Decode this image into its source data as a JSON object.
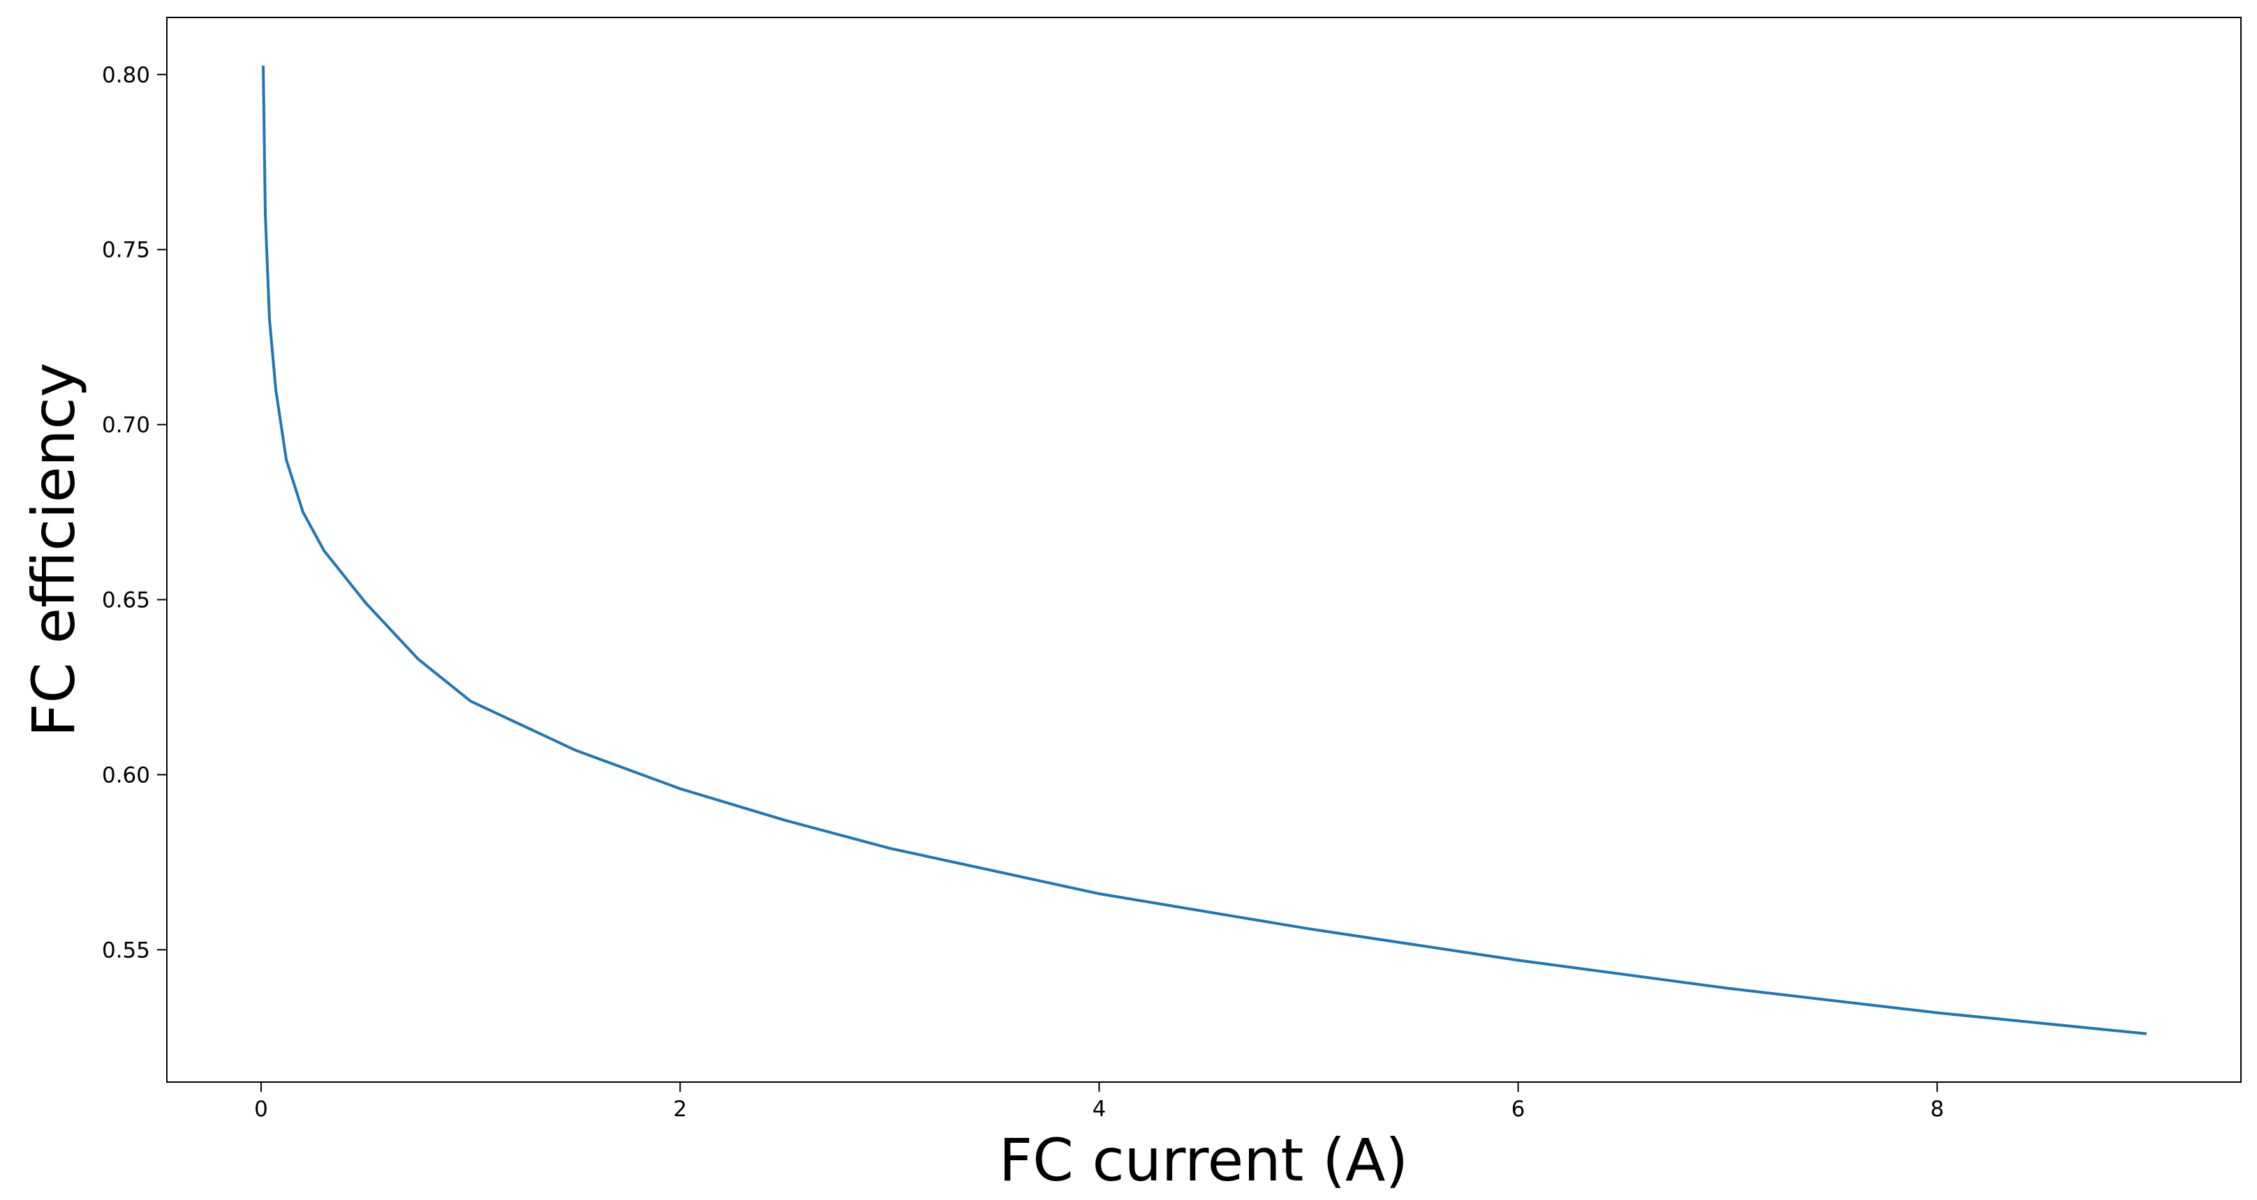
{
  "chart_data": {
    "type": "line",
    "x_label": "FC current (A)",
    "y_label": "FC efficiency",
    "x": [
      0.01,
      0.02,
      0.04,
      0.07,
      0.12,
      0.2,
      0.3,
      0.5,
      0.75,
      1,
      1.5,
      2,
      2.5,
      3,
      4,
      5,
      6,
      7,
      8,
      9
    ],
    "series": [
      {
        "color": "#1f77b4",
        "values": [
          0.8025,
          0.76,
          0.73,
          0.71,
          0.69,
          0.675,
          0.664,
          0.649,
          0.633,
          0.621,
          0.607,
          0.596,
          0.587,
          0.579,
          0.566,
          0.556,
          0.547,
          0.539,
          0.532,
          0.526
        ]
      }
    ],
    "xlim": [
      -0.45,
      9.45
    ],
    "xticks": [
      0,
      2,
      4,
      6,
      8
    ],
    "ylim": [
      0.5122,
      0.8163
    ],
    "yticks": [
      {
        "value": 0.55,
        "label": "0.55"
      },
      {
        "value": 0.6,
        "label": "0.60"
      },
      {
        "value": 0.65,
        "label": "0.65"
      },
      {
        "value": 0.7,
        "label": "0.70"
      },
      {
        "value": 0.75,
        "label": "0.75"
      },
      {
        "value": 0.8,
        "label": "0.80"
      }
    ],
    "grid": false
  }
}
